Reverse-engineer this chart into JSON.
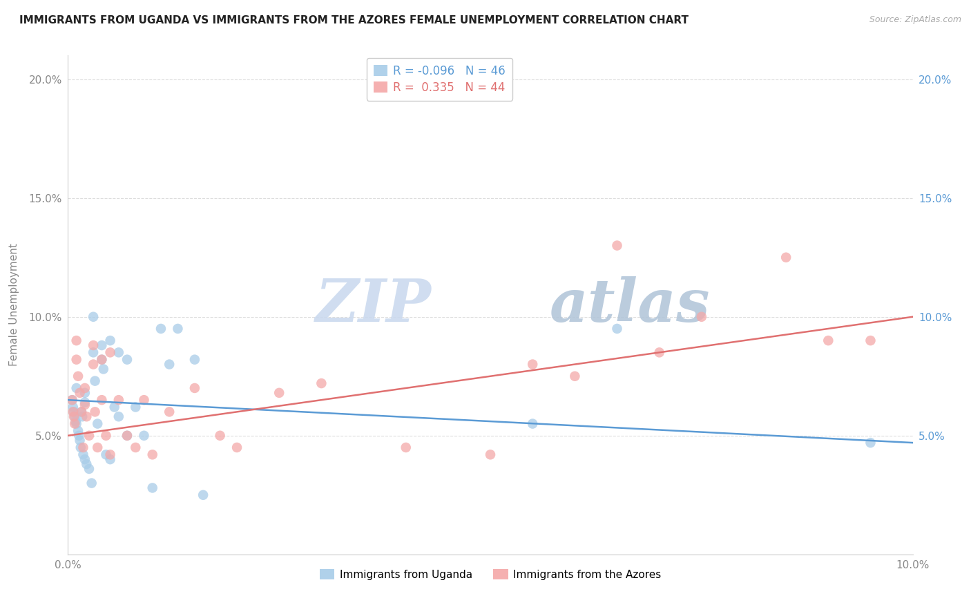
{
  "title": "IMMIGRANTS FROM UGANDA VS IMMIGRANTS FROM THE AZORES FEMALE UNEMPLOYMENT CORRELATION CHART",
  "source": "Source: ZipAtlas.com",
  "ylabel": "Female Unemployment",
  "legend_blue_r": "-0.096",
  "legend_blue_n": "46",
  "legend_pink_r": "0.335",
  "legend_pink_n": "44",
  "legend_blue_label": "Immigrants from Uganda",
  "legend_pink_label": "Immigrants from the Azores",
  "xlim": [
    0.0,
    0.1
  ],
  "ylim": [
    0.0,
    0.21
  ],
  "yticks": [
    0.05,
    0.1,
    0.15,
    0.2
  ],
  "ytick_labels_left": [
    "5.0%",
    "10.0%",
    "15.0%",
    "20.0%"
  ],
  "ytick_labels_right": [
    "5.0%",
    "10.0%",
    "15.0%",
    "20.0%"
  ],
  "blue_color": "#a8cce8",
  "pink_color": "#f4a8a8",
  "blue_line_color": "#5b9bd5",
  "pink_line_color": "#e07070",
  "watermark_zip": "ZIP",
  "watermark_atlas": "atlas",
  "background_color": "#ffffff",
  "grid_color": "#dddddd",
  "uganda_x": [
    0.0005,
    0.0006,
    0.0007,
    0.0008,
    0.0009,
    0.001,
    0.001,
    0.0012,
    0.0013,
    0.0014,
    0.0015,
    0.0016,
    0.0017,
    0.0018,
    0.002,
    0.002,
    0.002,
    0.0022,
    0.0025,
    0.0028,
    0.003,
    0.003,
    0.0032,
    0.0035,
    0.004,
    0.004,
    0.0042,
    0.0045,
    0.005,
    0.005,
    0.0055,
    0.006,
    0.006,
    0.007,
    0.007,
    0.008,
    0.009,
    0.01,
    0.011,
    0.012,
    0.013,
    0.015,
    0.016,
    0.055,
    0.065,
    0.095
  ],
  "uganda_y": [
    0.065,
    0.062,
    0.06,
    0.058,
    0.056,
    0.07,
    0.055,
    0.052,
    0.05,
    0.048,
    0.045,
    0.06,
    0.058,
    0.042,
    0.068,
    0.064,
    0.04,
    0.038,
    0.036,
    0.03,
    0.1,
    0.085,
    0.073,
    0.055,
    0.088,
    0.082,
    0.078,
    0.042,
    0.09,
    0.04,
    0.062,
    0.085,
    0.058,
    0.082,
    0.05,
    0.062,
    0.05,
    0.028,
    0.095,
    0.08,
    0.095,
    0.082,
    0.025,
    0.055,
    0.095,
    0.047
  ],
  "azores_x": [
    0.0005,
    0.0006,
    0.0007,
    0.0008,
    0.001,
    0.001,
    0.0012,
    0.0014,
    0.0016,
    0.0018,
    0.002,
    0.002,
    0.0022,
    0.0025,
    0.003,
    0.003,
    0.0032,
    0.0035,
    0.004,
    0.004,
    0.0045,
    0.005,
    0.005,
    0.006,
    0.007,
    0.008,
    0.009,
    0.01,
    0.012,
    0.015,
    0.018,
    0.02,
    0.025,
    0.03,
    0.04,
    0.05,
    0.055,
    0.06,
    0.065,
    0.07,
    0.075,
    0.085,
    0.09,
    0.095
  ],
  "azores_y": [
    0.065,
    0.06,
    0.058,
    0.055,
    0.09,
    0.082,
    0.075,
    0.068,
    0.06,
    0.045,
    0.07,
    0.063,
    0.058,
    0.05,
    0.088,
    0.08,
    0.06,
    0.045,
    0.082,
    0.065,
    0.05,
    0.085,
    0.042,
    0.065,
    0.05,
    0.045,
    0.065,
    0.042,
    0.06,
    0.07,
    0.05,
    0.045,
    0.068,
    0.072,
    0.045,
    0.042,
    0.08,
    0.075,
    0.13,
    0.085,
    0.1,
    0.125,
    0.09,
    0.09
  ]
}
